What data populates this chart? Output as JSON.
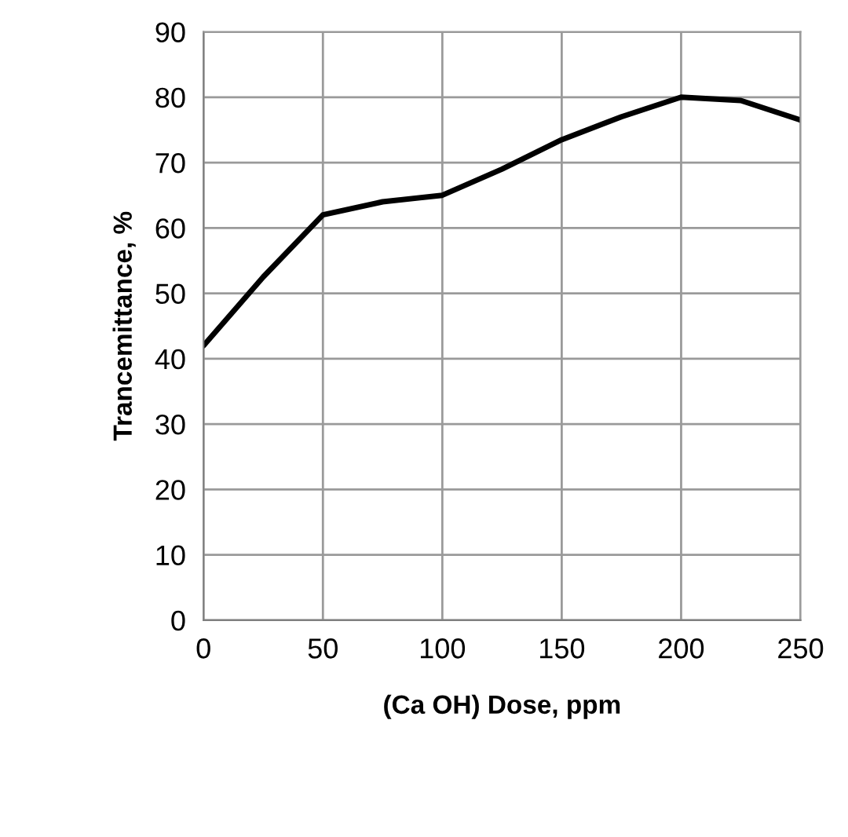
{
  "chart_data": {
    "type": "line",
    "xlabel": "(Ca OH) Dose, ppm",
    "ylabel": "Trancemittance, %",
    "x": [
      0,
      25,
      50,
      75,
      100,
      125,
      150,
      175,
      200,
      225,
      250
    ],
    "series": [
      {
        "color": "#000000",
        "values": [
          42,
          52.5,
          62,
          64,
          65,
          69,
          73.5,
          77,
          80,
          79.5,
          76.5
        ]
      }
    ],
    "xlim": [
      0,
      250
    ],
    "xticks": [
      0,
      50,
      100,
      150,
      200,
      250
    ],
    "ylim": [
      0,
      90
    ],
    "yticks": [
      0,
      10,
      20,
      30,
      40,
      50,
      60,
      70,
      80,
      90
    ],
    "grid": true,
    "marker": "none",
    "line_style": "solid"
  }
}
